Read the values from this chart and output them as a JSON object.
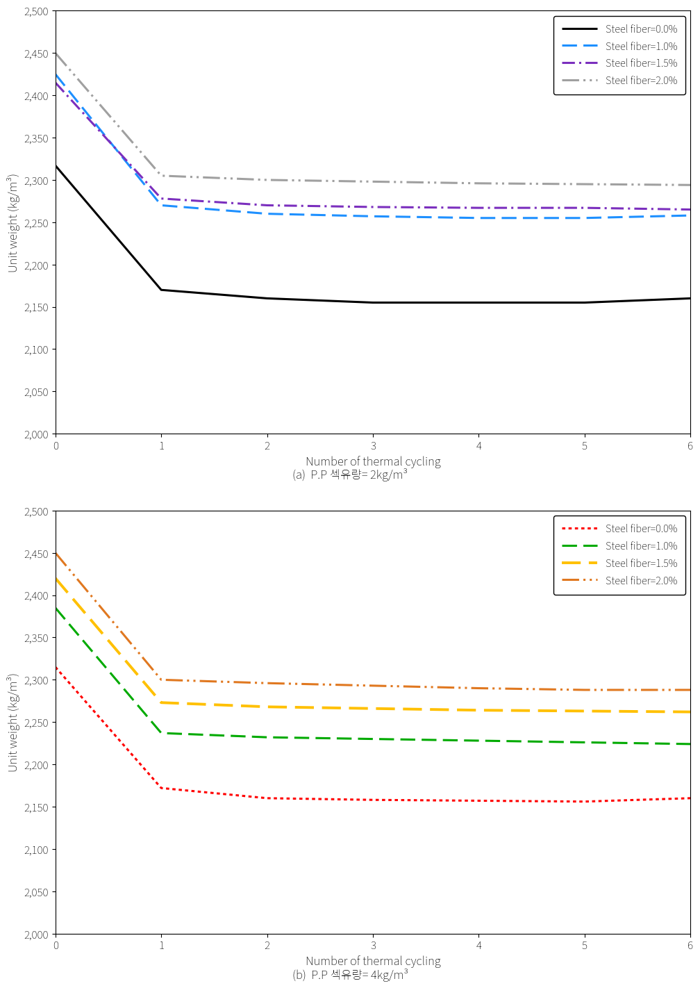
{
  "x": [
    0,
    1,
    2,
    3,
    4,
    5,
    6
  ],
  "chart_a": {
    "title": "(a)  P.P 섹유량= 2kg/m³",
    "series": [
      {
        "label": "Steel fiber=0.0%",
        "color": "#000000",
        "linestyle": "solid",
        "linewidth": 2.2,
        "values": [
          2317,
          2170,
          2160,
          2155,
          2155,
          2155,
          2160
        ]
      },
      {
        "label": "Steel fiber=1.0%",
        "color": "#1e90ff",
        "linestyle": "dashed_heavy",
        "linewidth": 2.2,
        "values": [
          2425,
          2270,
          2260,
          2257,
          2255,
          2255,
          2258
        ]
      },
      {
        "label": "Steel fiber=1.5%",
        "color": "#7b2fbe",
        "linestyle": "dashdot",
        "linewidth": 2.2,
        "values": [
          2415,
          2278,
          2270,
          2268,
          2267,
          2267,
          2265
        ]
      },
      {
        "label": "Steel fiber=2.0%",
        "color": "#a0a0a0",
        "linestyle": "dashdot2",
        "linewidth": 2.2,
        "values": [
          2450,
          2305,
          2300,
          2298,
          2296,
          2295,
          2294
        ]
      }
    ]
  },
  "chart_b": {
    "title": "(b)  P.P 섹유량= 4kg/m³",
    "series": [
      {
        "label": "Steel fiber=0.0%",
        "color": "#ff0000",
        "linestyle": "dotted",
        "linewidth": 2.2,
        "values": [
          2315,
          2172,
          2160,
          2158,
          2157,
          2156,
          2160
        ]
      },
      {
        "label": "Steel fiber=1.0%",
        "color": "#00aa00",
        "linestyle": "dashed_heavy",
        "linewidth": 2.2,
        "values": [
          2385,
          2237,
          2232,
          2230,
          2228,
          2226,
          2224
        ]
      },
      {
        "label": "Steel fiber=1.5%",
        "color": "#ffc000",
        "linestyle": "dashed_heavy",
        "linewidth": 2.8,
        "values": [
          2420,
          2273,
          2268,
          2266,
          2264,
          2263,
          2262
        ]
      },
      {
        "label": "Steel fiber=2.0%",
        "color": "#e07820",
        "linestyle": "dashdot2",
        "linewidth": 2.2,
        "values": [
          2450,
          2300,
          2296,
          2293,
          2290,
          2288,
          2288
        ]
      }
    ]
  },
  "ylabel": "Unit weight (kg/m³)",
  "xlabel": "Number of thermal cycling",
  "ylim": [
    2000,
    2500
  ],
  "yticks": [
    2000,
    2050,
    2100,
    2150,
    2200,
    2250,
    2300,
    2350,
    2400,
    2450,
    2500
  ],
  "xlim": [
    0,
    6
  ],
  "xticks": [
    0,
    1,
    2,
    3,
    4,
    5,
    6
  ]
}
